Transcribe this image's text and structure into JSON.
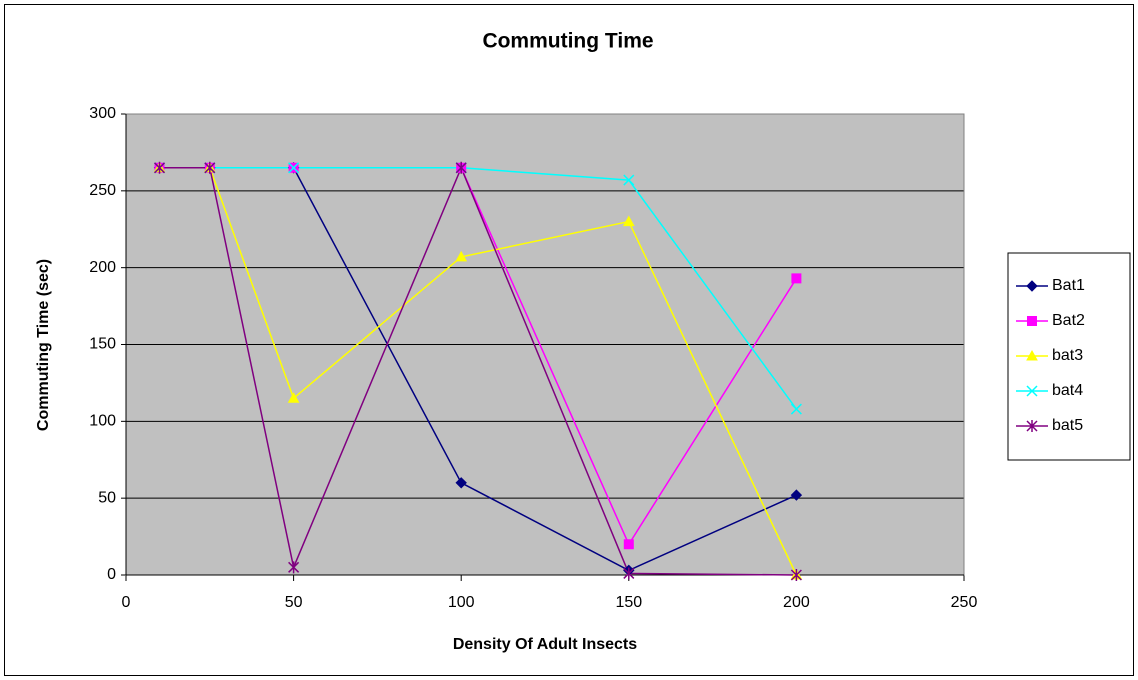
{
  "chart_data": {
    "type": "line",
    "title": "Commuting Time",
    "x_label": "Density Of Adult Insects",
    "y_label": "Commuting Time (sec)",
    "x": [
      10,
      25,
      50,
      100,
      150,
      200
    ],
    "series": [
      {
        "name": "Bat1",
        "color": "#000080",
        "marker": "diamond",
        "values": [
          265,
          265,
          265,
          60,
          3,
          52
        ]
      },
      {
        "name": "Bat2",
        "color": "#ff00ff",
        "marker": "square",
        "values": [
          265,
          265,
          265,
          265,
          20,
          193
        ]
      },
      {
        "name": "bat3",
        "color": "#ffff00",
        "marker": "triangle",
        "values": [
          265,
          265,
          115,
          207,
          230,
          0
        ]
      },
      {
        "name": "bat4",
        "color": "#00ffff",
        "marker": "x",
        "values": [
          265,
          265,
          265,
          265,
          257,
          108
        ]
      },
      {
        "name": "bat5",
        "color": "#800080",
        "marker": "star",
        "values": [
          265,
          265,
          5,
          265,
          1,
          0
        ]
      }
    ],
    "xlim": [
      0,
      250
    ],
    "xticks": [
      0,
      50,
      100,
      150,
      200,
      250
    ],
    "ylim": [
      0,
      300
    ],
    "yticks": [
      0,
      50,
      100,
      150,
      200,
      250,
      300
    ],
    "grid": true,
    "legend": "right",
    "plot_background": "#c0c0c0"
  }
}
